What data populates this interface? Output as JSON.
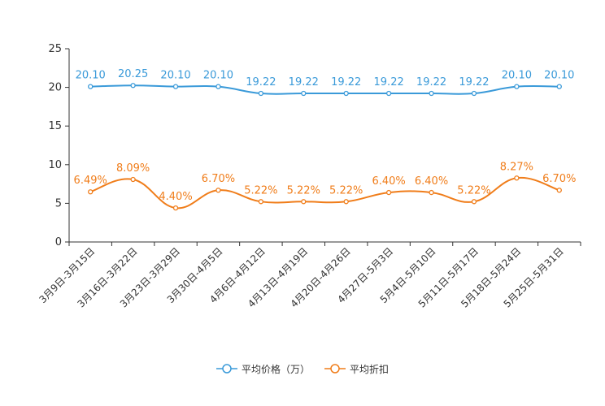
{
  "chart_data": {
    "type": "line",
    "title": "",
    "xlabel": "",
    "ylabel": "",
    "ylim": [
      0,
      25
    ],
    "yticks": [
      0,
      5,
      10,
      15,
      20,
      25
    ],
    "categories": [
      "3月9日-3月15日",
      "3月16日-3月22日",
      "3月23日-3月29日",
      "3月30日-4月5日",
      "4月6日-4月12日",
      "4月13日-4月19日",
      "4月20日-4月26日",
      "4月27日-5月3日",
      "5月4日-5月10日",
      "5月11日-5月17日",
      "5月18日-5月24日",
      "5月25日-5月31日"
    ],
    "series": [
      {
        "name": "平均价格（万）",
        "color": "#3a9ad9",
        "values": [
          20.1,
          20.25,
          20.1,
          20.1,
          19.22,
          19.22,
          19.22,
          19.22,
          19.22,
          19.22,
          20.1,
          20.1
        ],
        "labels": [
          "20.10",
          "20.25",
          "20.10",
          "20.10",
          "19.22",
          "19.22",
          "19.22",
          "19.22",
          "19.22",
          "19.22",
          "20.10",
          "20.10"
        ]
      },
      {
        "name": "平均折扣",
        "color": "#f07d1a",
        "values": [
          6.49,
          8.09,
          4.4,
          6.7,
          5.22,
          5.22,
          5.22,
          6.4,
          6.4,
          5.22,
          8.27,
          6.7
        ],
        "labels": [
          "6.49%",
          "8.09%",
          "4.40%",
          "6.70%",
          "5.22%",
          "5.22%",
          "5.22%",
          "6.40%",
          "6.40%",
          "5.22%",
          "8.27%",
          "6.70%"
        ]
      }
    ],
    "legend_position": "bottom-center",
    "grid": false
  }
}
